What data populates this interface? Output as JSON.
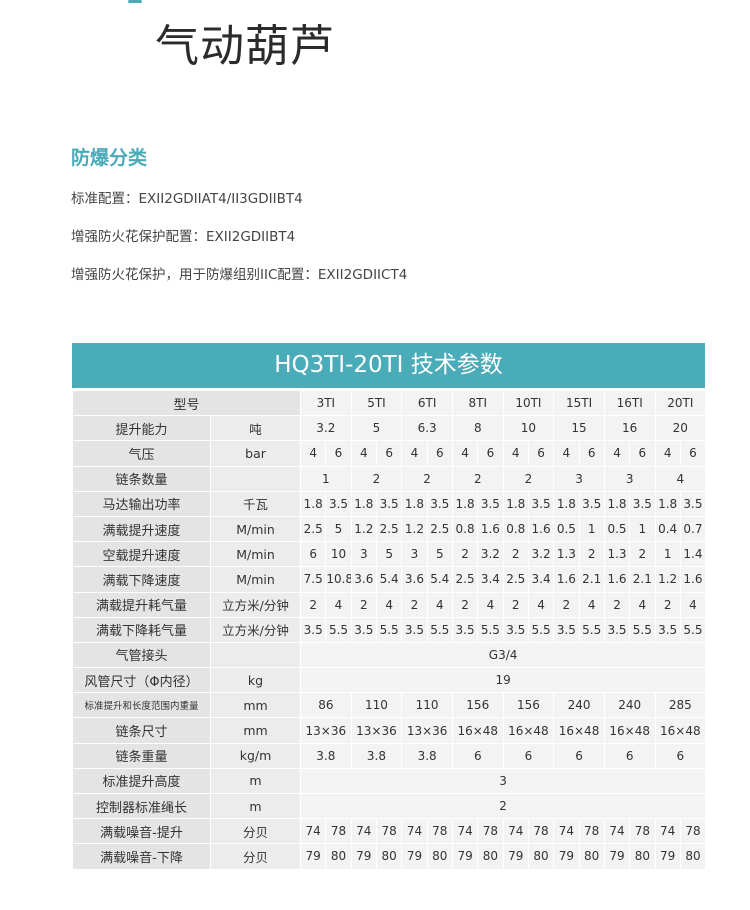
{
  "page": {
    "title": "气动葫芦",
    "section_title": "防爆分类",
    "lines": [
      "标准配置：EXII2GDIIAT4/II3GDIIBT4",
      "增强防火花保护配置：EXII2GDIIBT4",
      "增强防火花保护，用于防爆组别IIC配置：EXII2GDIICT4"
    ],
    "accent_color": "#4aabb9"
  },
  "table": {
    "title": "HQ3TI-20TI 技术参数",
    "model_label": "型号",
    "models": [
      "3TI",
      "5TI",
      "6TI",
      "8TI",
      "10TI",
      "15TI",
      "16TI",
      "20TI"
    ],
    "rows": [
      {
        "label": "提升能力",
        "unit": "吨",
        "type": "single",
        "values": [
          "3.2",
          "5",
          "6.3",
          "8",
          "10",
          "15",
          "16",
          "20"
        ]
      },
      {
        "label": "气压",
        "unit": "bar",
        "type": "pair",
        "values": [
          "4",
          "6",
          "4",
          "6",
          "4",
          "6",
          "4",
          "6",
          "4",
          "6",
          "4",
          "6",
          "4",
          "6",
          "4",
          "6"
        ]
      },
      {
        "label": "链条数量",
        "unit": "",
        "type": "single",
        "values": [
          "1",
          "2",
          "2",
          "2",
          "2",
          "3",
          "3",
          "4"
        ]
      },
      {
        "label": "马达输出功率",
        "unit": "千瓦",
        "type": "pair",
        "values": [
          "1.8",
          "3.5",
          "1.8",
          "3.5",
          "1.8",
          "3.5",
          "1.8",
          "3.5",
          "1.8",
          "3.5",
          "1.8",
          "3.5",
          "1.8",
          "3.5",
          "1.8",
          "3.5"
        ]
      },
      {
        "label": "满载提升速度",
        "unit": "M/min",
        "type": "pair",
        "values": [
          "2.5",
          "5",
          "1.2",
          "2.5",
          "1.2",
          "2.5",
          "0.8",
          "1.6",
          "0.8",
          "1.6",
          "0.5",
          "1",
          "0.5",
          "1",
          "0.4",
          "0.7"
        ]
      },
      {
        "label": "空载提升速度",
        "unit": "M/min",
        "type": "pair",
        "values": [
          "6",
          "10",
          "3",
          "5",
          "3",
          "5",
          "2",
          "3.2",
          "2",
          "3.2",
          "1.3",
          "2",
          "1.3",
          "2",
          "1",
          "1.4"
        ]
      },
      {
        "label": "满载下降速度",
        "unit": "M/min",
        "type": "pair",
        "values": [
          "7.5",
          "10.8",
          "3.6",
          "5.4",
          "3.6",
          "5.4",
          "2.5",
          "3.4",
          "2.5",
          "3.4",
          "1.6",
          "2.1",
          "1.6",
          "2.1",
          "1.2",
          "1.6"
        ]
      },
      {
        "label": "满载提升耗气量",
        "unit": "立方米/分钟",
        "type": "pair",
        "values": [
          "2",
          "4",
          "2",
          "4",
          "2",
          "4",
          "2",
          "4",
          "2",
          "4",
          "2",
          "4",
          "2",
          "4",
          "2",
          "4"
        ]
      },
      {
        "label": "满载下降耗气量",
        "unit": "立方米/分钟",
        "type": "pair",
        "values": [
          "3.5",
          "5.5",
          "3.5",
          "5.5",
          "3.5",
          "5.5",
          "3.5",
          "5.5",
          "3.5",
          "5.5",
          "3.5",
          "5.5",
          "3.5",
          "5.5",
          "3.5",
          "5.5"
        ]
      },
      {
        "label": "气管接头",
        "unit": "",
        "type": "span",
        "values": [
          "G3/4"
        ]
      },
      {
        "label": "风管尺寸（Φ内径）",
        "unit": "kg",
        "type": "span",
        "values": [
          "19"
        ]
      },
      {
        "label": "标准提升和长度范围内重量",
        "unit": "mm",
        "type": "single",
        "small": true,
        "values": [
          "86",
          "110",
          "110",
          "156",
          "156",
          "240",
          "240",
          "285"
        ]
      },
      {
        "label": "链条尺寸",
        "unit": "mm",
        "type": "single",
        "values": [
          "13×36",
          "13×36",
          "13×36",
          "16×48",
          "16×48",
          "16×48",
          "16×48",
          "16×48"
        ]
      },
      {
        "label": "链条重量",
        "unit": "kg/m",
        "type": "single",
        "values": [
          "3.8",
          "3.8",
          "3.8",
          "6",
          "6",
          "6",
          "6",
          "6"
        ]
      },
      {
        "label": "标准提升高度",
        "unit": "m",
        "type": "span",
        "values": [
          "3"
        ]
      },
      {
        "label": "控制器标准绳长",
        "unit": "m",
        "type": "span",
        "values": [
          "2"
        ]
      },
      {
        "label": "满载噪音-提升",
        "unit": "分贝",
        "type": "pair",
        "values": [
          "74",
          "78",
          "74",
          "78",
          "74",
          "78",
          "74",
          "78",
          "74",
          "78",
          "74",
          "78",
          "74",
          "78",
          "74",
          "78"
        ]
      },
      {
        "label": "满载噪音-下降",
        "unit": "分贝",
        "type": "pair",
        "values": [
          "79",
          "80",
          "79",
          "80",
          "79",
          "80",
          "79",
          "80",
          "79",
          "80",
          "79",
          "80",
          "79",
          "80",
          "79",
          "80"
        ]
      }
    ]
  }
}
